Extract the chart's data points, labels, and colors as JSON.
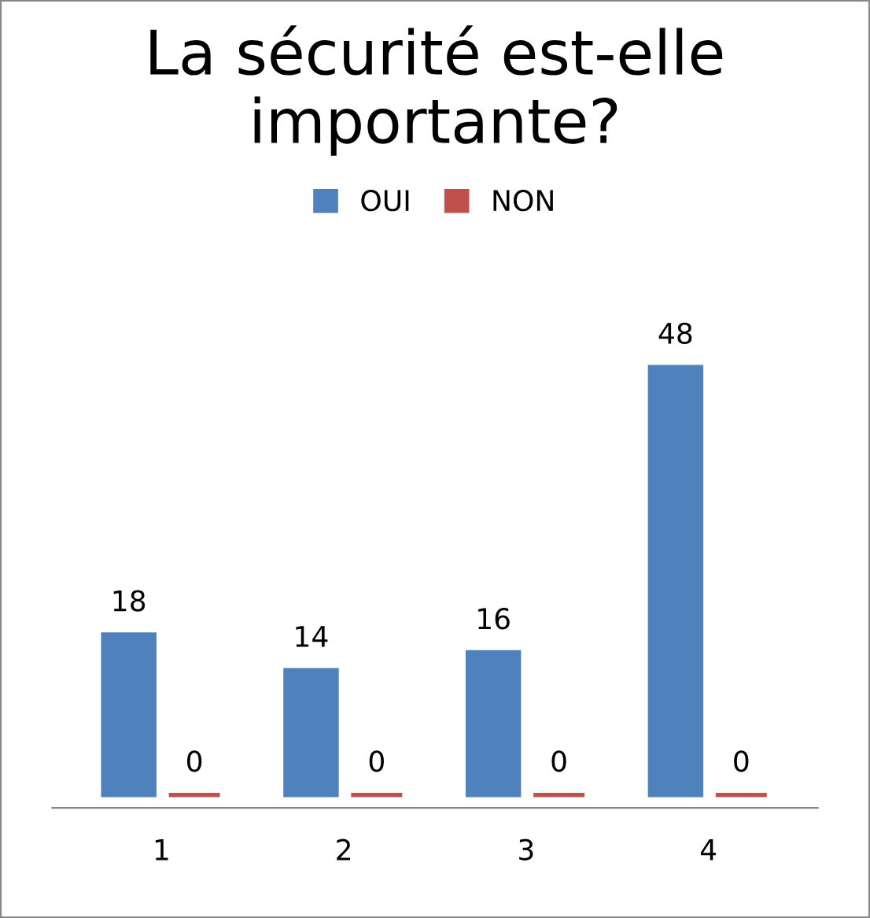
{
  "chart_data": {
    "type": "bar",
    "title": "La sécurité est-elle importante?",
    "categories": [
      "1",
      "2",
      "3",
      "4"
    ],
    "series": [
      {
        "name": "OUI",
        "color": "#4f81bd",
        "values": [
          18,
          14,
          16,
          48
        ]
      },
      {
        "name": "NON",
        "color": "#c0504d",
        "values": [
          0,
          0,
          0,
          0
        ]
      }
    ],
    "data_labels": true,
    "legend": "top",
    "grid": false
  }
}
